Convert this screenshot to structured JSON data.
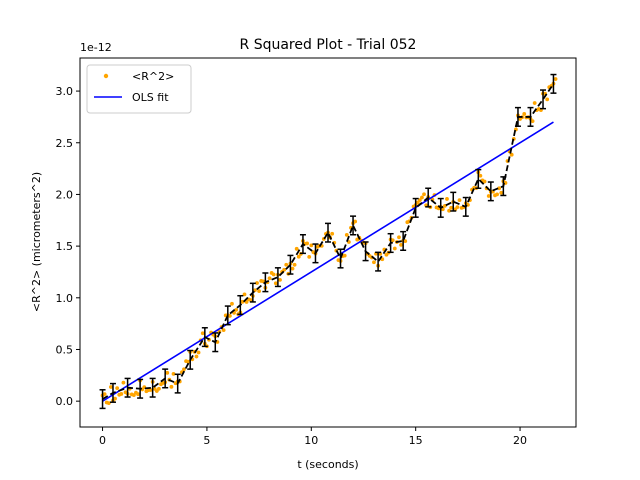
{
  "chart_data": {
    "type": "scatter",
    "title": "R Squared Plot - Trial 052",
    "xlabel": "t (seconds)",
    "ylabel": "<R^2> (micrometers^2)",
    "y_offset_label": "1e-12",
    "xlim": [
      -1.08,
      22.68
    ],
    "ylim": [
      -0.25,
      3.32
    ],
    "x_ticks": [
      0,
      5,
      10,
      15,
      20
    ],
    "x_tick_labels": [
      "0",
      "5",
      "10",
      "15",
      "20"
    ],
    "y_ticks": [
      0.0,
      0.5,
      1.0,
      1.5,
      2.0,
      2.5,
      3.0
    ],
    "y_tick_labels": [
      "0.0",
      "0.5",
      "1.0",
      "1.5",
      "2.0",
      "2.5",
      "3.0"
    ],
    "grid": false,
    "legend_position": "upper-left",
    "colors": {
      "points": "#ffa500",
      "fit": "#0000ff",
      "errorbars": "#000000"
    },
    "series": [
      {
        "name": "<R^2>",
        "kind": "scatter-with-dashed-line-and-errorbars",
        "x": [
          0,
          0.5,
          1.2,
          1.8,
          2.4,
          3.0,
          3.6,
          4.2,
          4.9,
          5.4,
          6.0,
          6.6,
          7.2,
          7.8,
          8.4,
          9.0,
          9.6,
          10.2,
          10.8,
          11.4,
          12.0,
          12.6,
          13.2,
          13.8,
          14.4,
          15.0,
          15.6,
          16.2,
          16.8,
          17.4,
          18.0,
          18.6,
          19.2,
          19.9,
          20.5,
          21.1,
          21.6
        ],
        "y": [
          0.02,
          0.08,
          0.13,
          0.12,
          0.13,
          0.22,
          0.17,
          0.4,
          0.62,
          0.57,
          0.83,
          0.93,
          1.05,
          1.15,
          1.2,
          1.32,
          1.52,
          1.43,
          1.63,
          1.38,
          1.7,
          1.45,
          1.35,
          1.53,
          1.55,
          1.87,
          1.97,
          1.87,
          1.93,
          1.88,
          2.15,
          2.03,
          2.08,
          2.75,
          2.75,
          2.92,
          3.07
        ],
        "yerr": 0.09
      },
      {
        "name": "OLS fit",
        "kind": "line",
        "x": [
          0,
          21.6
        ],
        "y": [
          0.0,
          2.7
        ]
      }
    ]
  }
}
